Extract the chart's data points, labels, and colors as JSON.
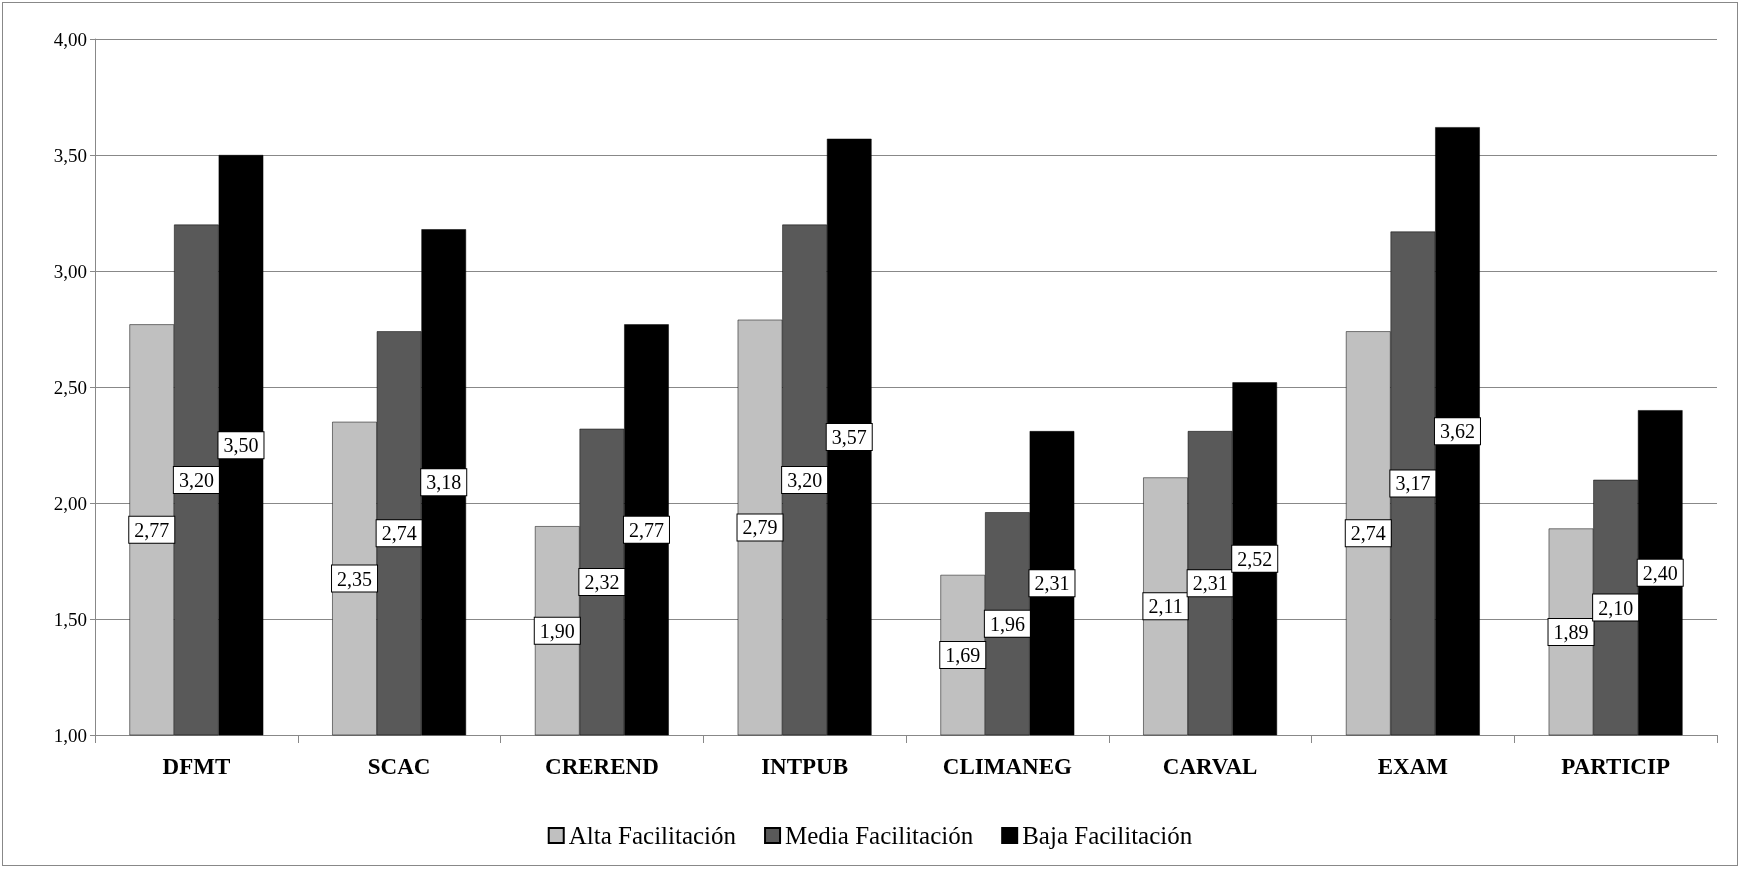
{
  "chart_data": {
    "type": "bar",
    "categories": [
      "DFMT",
      "SCAC",
      "CREREND",
      "INTPUB",
      "CLIMANEG",
      "CARVAL",
      "EXAM",
      "PARTICIP"
    ],
    "series": [
      {
        "name": "Alta Facilitación",
        "color": "#c0c0c0",
        "values": [
          2.77,
          2.35,
          1.9,
          2.79,
          1.69,
          2.11,
          2.74,
          1.89
        ],
        "value_labels": [
          "2,77",
          "2,35",
          "1,90",
          "2,79",
          "1,69",
          "2,11",
          "2,74",
          "1,89"
        ]
      },
      {
        "name": "Media Facilitación",
        "color": "#595959",
        "values": [
          3.2,
          2.74,
          2.32,
          3.2,
          1.96,
          2.31,
          3.17,
          2.1
        ],
        "value_labels": [
          "3,20",
          "2,74",
          "2,32",
          "3,20",
          "1,96",
          "2,31",
          "3,17",
          "2,10"
        ]
      },
      {
        "name": "Baja Facilitación",
        "color": "#000000",
        "values": [
          3.5,
          3.18,
          2.77,
          3.57,
          2.31,
          2.52,
          3.62,
          2.4
        ],
        "value_labels": [
          "3,50",
          "3,18",
          "2,77",
          "3,57",
          "2,31",
          "2,52",
          "3,62",
          "2,40"
        ]
      }
    ],
    "ylim": [
      1,
      4
    ],
    "yticks": [
      {
        "value": 1,
        "label": "1,00"
      },
      {
        "value": 1.5,
        "label": "1,50"
      },
      {
        "value": 2,
        "label": "2,00"
      },
      {
        "value": 2.5,
        "label": "2,50"
      },
      {
        "value": 3,
        "label": "3,00"
      },
      {
        "value": 3.5,
        "label": "3,50"
      },
      {
        "value": 4,
        "label": "4,00"
      }
    ],
    "grid": "y",
    "legend": "bottom"
  }
}
